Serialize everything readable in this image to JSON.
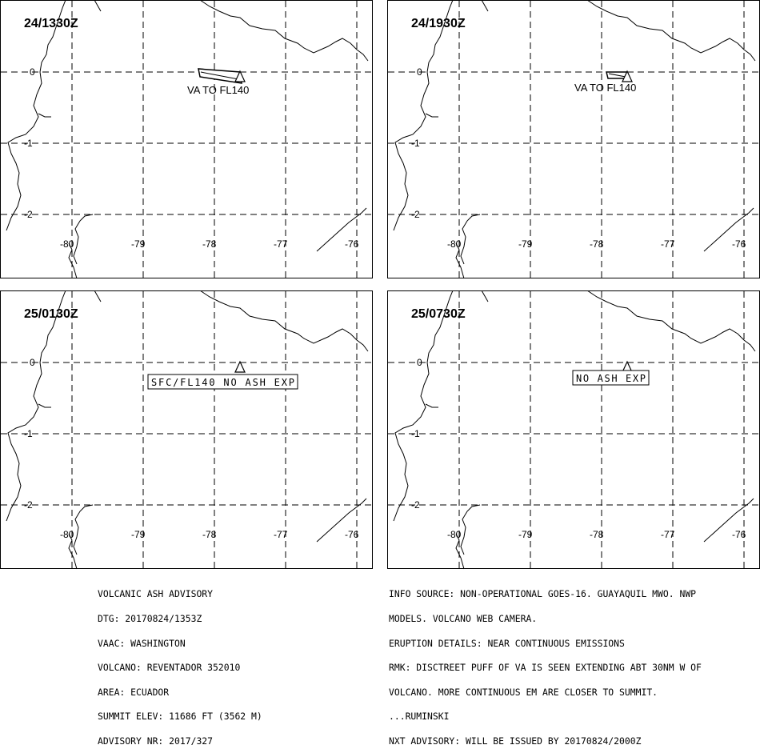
{
  "panels": [
    {
      "time": "24/1330Z",
      "label": "VA TO FL140",
      "boxed": false,
      "plume": "large"
    },
    {
      "time": "24/1930Z",
      "label": "VA TO FL140",
      "boxed": false,
      "plume": "small"
    },
    {
      "time": "25/0130Z",
      "label": "SFC/FL140 NO ASH EXP",
      "boxed": true,
      "plume": "none"
    },
    {
      "time": "25/0730Z",
      "label": "NO ASH EXP",
      "boxed": true,
      "plume": "none"
    }
  ],
  "axes": {
    "lat_labels": [
      "0",
      "-1",
      "-2"
    ],
    "lon_labels": [
      "-80",
      "-79",
      "-78",
      "-77",
      "-76"
    ]
  },
  "advisory_left": [
    "VOLCANIC ASH ADVISORY",
    "DTG: 20170824/1353Z",
    "VAAC: WASHINGTON",
    "VOLCANO: REVENTADOR 352010",
    "AREA: ECUADOR",
    "SUMMIT ELEV: 11686 FT (3562 M)",
    "ADVISORY NR: 2017/327"
  ],
  "advisory_right": [
    "INFO SOURCE: NON-OPERATIONAL GOES-16. GUAYAQUIL MWO. NWP",
    "MODELS. VOLCANO WEB CAMERA.",
    "ERUPTION DETAILS: NEAR CONTINUOUS EMISSIONS",
    "RMK: DISCTREET PUFF OF VA IS SEEN EXTENDING ABT 30NM W OF",
    "VOLCANO. MORE CONTINUOUS EM ARE CLOSER TO SUMMIT.",
    "...RUMINSKI",
    "NXT ADVISORY: WILL BE ISSUED BY 20170824/2000Z"
  ]
}
